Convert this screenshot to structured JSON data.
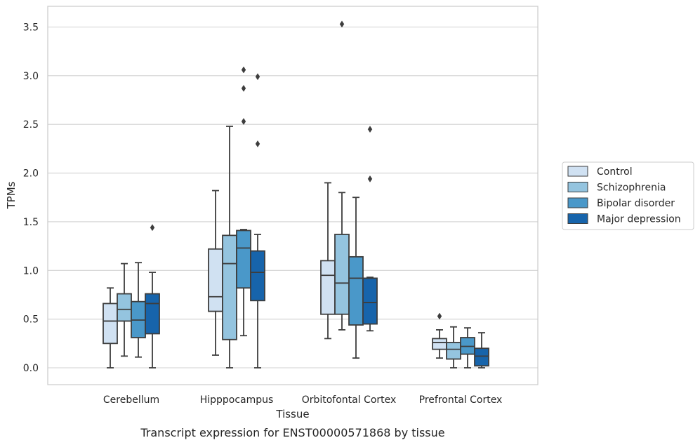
{
  "chart_data": {
    "type": "box",
    "caption": "Transcript expression for ENST00000571868 by tissue",
    "xlabel": "Tissue",
    "ylabel": "TPMs",
    "ylim": [
      -0.17,
      3.7
    ],
    "yticks": [
      "0.0",
      "0.5",
      "1.0",
      "1.5",
      "2.0",
      "2.5",
      "3.0",
      "3.5"
    ],
    "ytick_values": [
      0.0,
      0.5,
      1.0,
      1.5,
      2.0,
      2.5,
      3.0,
      3.5
    ],
    "grid": true,
    "legend_position": "right",
    "categories": [
      "Cerebellum",
      "Hipppocampus",
      "Orbitofontal Cortex",
      "Prefrontal Cortex"
    ],
    "series": [
      {
        "name": "Control",
        "color": "#d0e1f2",
        "boxes": [
          {
            "whislo": 0.0,
            "q1": 0.25,
            "med": 0.48,
            "q3": 0.66,
            "whishi": 0.82,
            "fliers": []
          },
          {
            "whislo": 0.13,
            "q1": 0.58,
            "med": 0.73,
            "q3": 1.22,
            "whishi": 1.82,
            "fliers": []
          },
          {
            "whislo": 0.3,
            "q1": 0.55,
            "med": 0.95,
            "q3": 1.1,
            "whishi": 1.9,
            "fliers": []
          },
          {
            "whislo": 0.1,
            "q1": 0.19,
            "med": 0.26,
            "q3": 0.3,
            "whishi": 0.39,
            "fliers": [
              0.53
            ]
          }
        ]
      },
      {
        "name": "Schizophrenia",
        "color": "#94c4df",
        "boxes": [
          {
            "whislo": 0.12,
            "q1": 0.48,
            "med": 0.6,
            "q3": 0.76,
            "whishi": 1.07,
            "fliers": []
          },
          {
            "whislo": 0.0,
            "q1": 0.29,
            "med": 1.07,
            "q3": 1.36,
            "whishi": 2.48,
            "fliers": []
          },
          {
            "whislo": 0.39,
            "q1": 0.55,
            "med": 0.87,
            "q3": 1.37,
            "whishi": 1.8,
            "fliers": [
              3.53
            ]
          },
          {
            "whislo": 0.0,
            "q1": 0.09,
            "med": 0.19,
            "q3": 0.26,
            "whishi": 0.42,
            "fliers": []
          }
        ]
      },
      {
        "name": "Bipolar disorder",
        "color": "#4a98c9",
        "boxes": [
          {
            "whislo": 0.11,
            "q1": 0.31,
            "med": 0.49,
            "q3": 0.68,
            "whishi": 1.08,
            "fliers": []
          },
          {
            "whislo": 0.33,
            "q1": 0.82,
            "med": 1.23,
            "q3": 1.41,
            "whishi": 1.42,
            "fliers": [
              2.53,
              2.87,
              3.06
            ]
          },
          {
            "whislo": 0.1,
            "q1": 0.44,
            "med": 0.92,
            "q3": 1.14,
            "whishi": 1.75,
            "fliers": []
          },
          {
            "whislo": 0.0,
            "q1": 0.14,
            "med": 0.22,
            "q3": 0.31,
            "whishi": 0.41,
            "fliers": []
          }
        ]
      },
      {
        "name": "Major depression",
        "color": "#1764ab",
        "boxes": [
          {
            "whislo": 0.0,
            "q1": 0.35,
            "med": 0.66,
            "q3": 0.76,
            "whishi": 0.98,
            "fliers": [
              1.44
            ]
          },
          {
            "whislo": 0.0,
            "q1": 0.69,
            "med": 0.98,
            "q3": 1.2,
            "whishi": 1.37,
            "fliers": [
              2.3,
              2.99
            ]
          },
          {
            "whislo": 0.38,
            "q1": 0.45,
            "med": 0.67,
            "q3": 0.92,
            "whishi": 0.93,
            "fliers": [
              1.94,
              2.45
            ]
          },
          {
            "whislo": 0.0,
            "q1": 0.02,
            "med": 0.12,
            "q3": 0.2,
            "whishi": 0.36,
            "fliers": []
          }
        ]
      }
    ]
  }
}
